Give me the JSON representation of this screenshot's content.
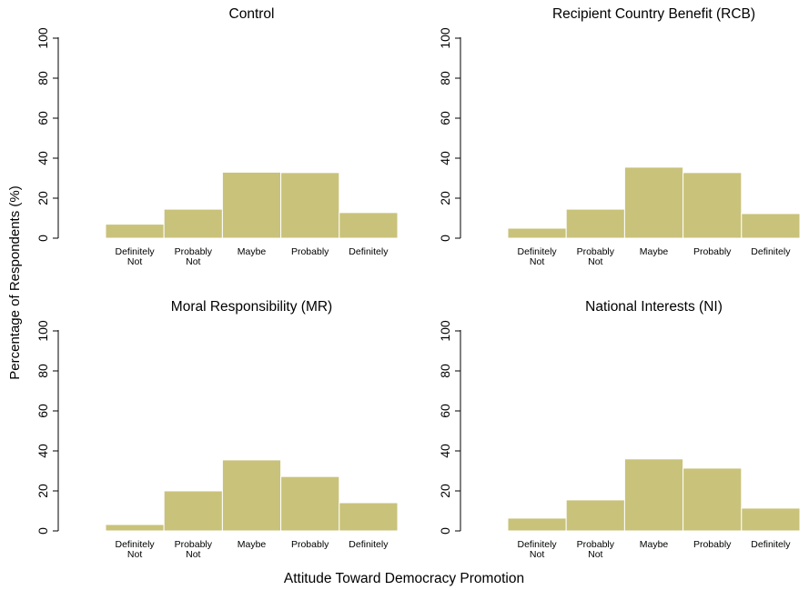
{
  "figure": {
    "ylabel": "Percentage of Respondents (%)",
    "xlabel": "Attitude Toward Democracy Promotion"
  },
  "chart_data": [
    {
      "type": "bar",
      "title": "Control",
      "categories": [
        "Definitely Not",
        "Probably Not",
        "Maybe",
        "Probably",
        "Definitely"
      ],
      "category_lines": [
        [
          "Definitely",
          "Not"
        ],
        [
          "Probably",
          "Not"
        ],
        [
          "Maybe"
        ],
        [
          "Probably"
        ],
        [
          "Definitely"
        ]
      ],
      "values": [
        7,
        14.5,
        33,
        32.8,
        12.8
      ],
      "ylim": [
        0,
        100
      ],
      "yticks": [
        0,
        20,
        40,
        60,
        80,
        100
      ],
      "bar_color": "#c9c27a",
      "grid": false
    },
    {
      "type": "bar",
      "title": "Recipient Country Benefit (RCB)",
      "categories": [
        "Definitely Not",
        "Probably Not",
        "Maybe",
        "Probably",
        "Definitely"
      ],
      "category_lines": [
        [
          "Definitely",
          "Not"
        ],
        [
          "Probably",
          "Not"
        ],
        [
          "Maybe"
        ],
        [
          "Probably"
        ],
        [
          "Definitely"
        ]
      ],
      "values": [
        5,
        14.5,
        35.5,
        32.8,
        12.3
      ],
      "ylim": [
        0,
        100
      ],
      "yticks": [
        0,
        20,
        40,
        60,
        80,
        100
      ],
      "bar_color": "#c9c27a",
      "grid": false
    },
    {
      "type": "bar",
      "title": "Moral Responsibility (MR)",
      "categories": [
        "Definitely Not",
        "Probably Not",
        "Maybe",
        "Probably",
        "Definitely"
      ],
      "category_lines": [
        [
          "Definitely",
          "Not"
        ],
        [
          "Probably",
          "Not"
        ],
        [
          "Maybe"
        ],
        [
          "Probably"
        ],
        [
          "Definitely"
        ]
      ],
      "values": [
        3.2,
        20,
        35.5,
        27.2,
        14.1
      ],
      "ylim": [
        0,
        100
      ],
      "yticks": [
        0,
        20,
        40,
        60,
        80,
        100
      ],
      "bar_color": "#c9c27a",
      "grid": false
    },
    {
      "type": "bar",
      "title": "National Interests (NI)",
      "categories": [
        "Definitely Not",
        "Probably Not",
        "Maybe",
        "Probably",
        "Definitely"
      ],
      "category_lines": [
        [
          "Definitely",
          "Not"
        ],
        [
          "Probably",
          "Not"
        ],
        [
          "Maybe"
        ],
        [
          "Probably"
        ],
        [
          "Definitely"
        ]
      ],
      "values": [
        6.4,
        15.5,
        36,
        31.4,
        11.4
      ],
      "ylim": [
        0,
        100
      ],
      "yticks": [
        0,
        20,
        40,
        60,
        80,
        100
      ],
      "bar_color": "#c9c27a",
      "grid": false
    }
  ]
}
